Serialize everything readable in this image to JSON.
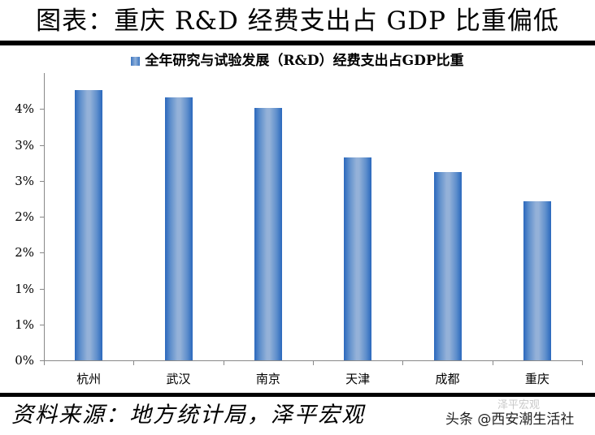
{
  "header": {
    "title": "图表：重庆 R&D 经费支出占 GDP 比重偏低"
  },
  "legend": {
    "label": "全年研究与试验发展（R&D）经费支出占GDP比重",
    "swatch_color": "#5f8fcc"
  },
  "footer": {
    "source": "资料来源：地方统计局，泽平宏观",
    "watermark": "头条 @西安潮生活社",
    "watermark_faint": "泽平宏观"
  },
  "yaxis": {
    "tick_labels": [
      "0%",
      "1%",
      "1%",
      "2%",
      "2%",
      "3%",
      "3%",
      "4%"
    ]
  },
  "chart_data": {
    "type": "bar",
    "title": "图表：重庆 R&D 经费支出占 GDP 比重偏低",
    "categories": [
      "杭州",
      "武汉",
      "南京",
      "天津",
      "成都",
      "重庆"
    ],
    "series": [
      {
        "name": "全年研究与试验发展（R&D）经费支出占GDP比重",
        "values": [
          3.76,
          3.66,
          3.51,
          2.82,
          2.62,
          2.21
        ]
      }
    ],
    "values": [
      3.76,
      3.66,
      3.51,
      2.82,
      2.62,
      2.21
    ],
    "xlabel": "",
    "ylabel": "",
    "ylim": [
      0,
      4
    ],
    "ytick_step": 0.5,
    "ytick_labels": [
      "0%",
      "1%",
      "1%",
      "2%",
      "2%",
      "3%",
      "3%",
      "4%"
    ],
    "grid": false,
    "legend_position": "top",
    "bar_color": "#2a68bd"
  }
}
